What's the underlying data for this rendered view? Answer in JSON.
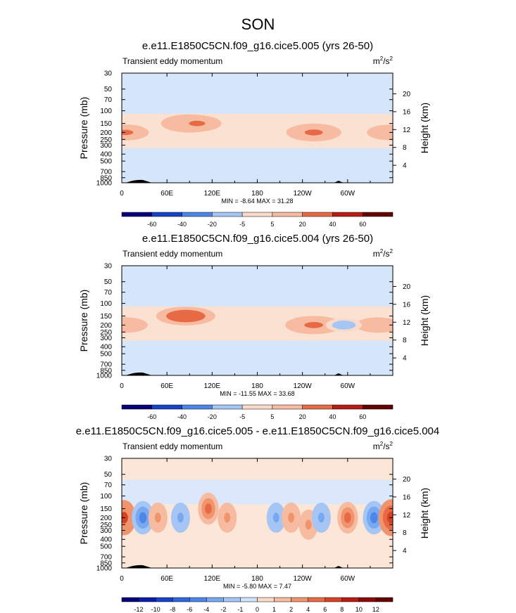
{
  "figure": {
    "title": "SON"
  },
  "chart_data": [
    {
      "type": "heatmap",
      "title": "e.e11.E1850C5CN.f09_g16.cice5.005 (yrs 26-50)",
      "subtitle": "Transient eddy momentum",
      "units_label": "m2/s2",
      "ylabel": "Pressure (mb)",
      "ylabel_right": "Height (km)",
      "xticks": [
        "0",
        "60E",
        "120E",
        "180",
        "120W",
        "60W"
      ],
      "yticks": [
        "30",
        "50",
        "70",
        "100",
        "150",
        "200",
        "250",
        "300",
        "400",
        "500",
        "700",
        "850",
        "1000"
      ],
      "height_ticks": [
        "20",
        "16",
        "12",
        "8",
        "4"
      ],
      "stats": "MIN = -8.64  MAX = 31.28",
      "colorbar": {
        "labels": [
          "-60",
          "-40",
          "-20",
          "-5",
          "5",
          "20",
          "40",
          "60"
        ]
      },
      "features": [
        {
          "lon": 90,
          "p": 150,
          "value": 30
        },
        {
          "lon": 255,
          "p": 200,
          "value": 28
        },
        {
          "lon": 5,
          "p": 200,
          "value": 20
        },
        {
          "lon": 355,
          "p": 200,
          "value": 18
        },
        {
          "lon": 100,
          "p": 150,
          "value": 22
        }
      ]
    },
    {
      "type": "heatmap",
      "title": "e.e11.E1850C5CN.f09_g16.cice5.004 (yrs 26-50)",
      "subtitle": "Transient eddy momentum",
      "units_label": "m2/s2",
      "ylabel": "Pressure (mb)",
      "ylabel_right": "Height (km)",
      "xticks": [
        "0",
        "60E",
        "120E",
        "180",
        "120W",
        "60W"
      ],
      "yticks": [
        "30",
        "50",
        "70",
        "100",
        "150",
        "200",
        "250",
        "300",
        "400",
        "500",
        "700",
        "850",
        "1000"
      ],
      "height_ticks": [
        "20",
        "16",
        "12",
        "8",
        "4"
      ],
      "stats": "MIN = -11.55  MAX = 33.68",
      "colorbar": {
        "labels": [
          "-60",
          "-40",
          "-20",
          "-5",
          "5",
          "20",
          "40",
          "60"
        ]
      },
      "features": [
        {
          "lon": 85,
          "p": 150,
          "value": 32
        },
        {
          "lon": 255,
          "p": 200,
          "value": 30
        },
        {
          "lon": 5,
          "p": 200,
          "value": 18
        },
        {
          "lon": 340,
          "p": 200,
          "value": 18
        },
        {
          "lon": 295,
          "p": 200,
          "value": -10
        }
      ]
    },
    {
      "type": "heatmap",
      "title": "e.e11.E1850C5CN.f09_g16.cice5.005 - e.e11.E1850C5CN.f09_g16.cice5.004",
      "subtitle": "Transient eddy momentum",
      "units_label": "m2/s2",
      "ylabel": "Pressure (mb)",
      "ylabel_right": "Height (km)",
      "xticks": [
        "0",
        "60E",
        "120E",
        "180",
        "120W",
        "60W"
      ],
      "yticks": [
        "30",
        "50",
        "70",
        "100",
        "150",
        "200",
        "250",
        "300",
        "400",
        "500",
        "700",
        "850",
        "1000"
      ],
      "height_ticks": [
        "20",
        "16",
        "12",
        "8",
        "4"
      ],
      "stats": "MIN = -5.80  MAX = 7.47",
      "colorbar": {
        "labels": [
          "-12",
          "-10",
          "-8",
          "-6",
          "-4",
          "-2",
          "-1",
          "0",
          "1",
          "2",
          "4",
          "6",
          "8",
          "10",
          "12"
        ]
      },
      "features": [
        {
          "lon": 3,
          "p": 200,
          "value": 6
        },
        {
          "lon": 28,
          "p": 200,
          "value": -5
        },
        {
          "lon": 48,
          "p": 200,
          "value": 3
        },
        {
          "lon": 78,
          "p": 200,
          "value": -3
        },
        {
          "lon": 115,
          "p": 150,
          "value": 4
        },
        {
          "lon": 140,
          "p": 200,
          "value": 3
        },
        {
          "lon": 205,
          "p": 200,
          "value": -3
        },
        {
          "lon": 225,
          "p": 200,
          "value": 3
        },
        {
          "lon": 248,
          "p": 250,
          "value": 3
        },
        {
          "lon": 265,
          "p": 200,
          "value": -3
        },
        {
          "lon": 300,
          "p": 200,
          "value": 4
        },
        {
          "lon": 335,
          "p": 200,
          "value": -5
        },
        {
          "lon": 358,
          "p": 200,
          "value": 7
        }
      ]
    }
  ]
}
